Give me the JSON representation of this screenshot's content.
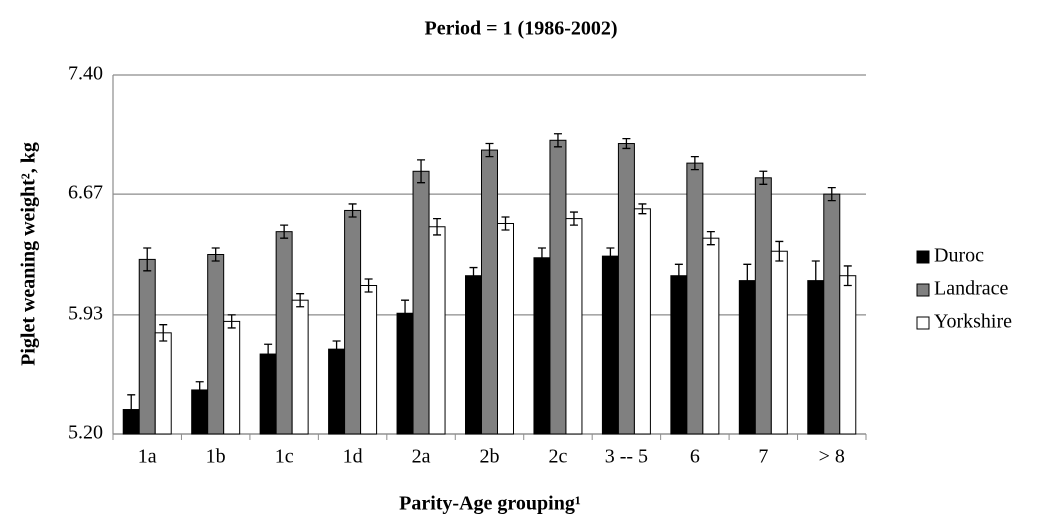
{
  "chart_data": {
    "type": "bar",
    "title": "Period = 1 (1986-2002)",
    "x_label": "Parity-Age grouping¹",
    "y_label": "Piglet weaning weight², kg",
    "categories": [
      "1a",
      "1b",
      "1c",
      "1d",
      "2a",
      "2b",
      "2c",
      "3 -- 5",
      "6",
      "7",
      "> 8"
    ],
    "series": [
      {
        "name": "Duroc",
        "color": "#000000",
        "values": [
          5.35,
          5.47,
          5.69,
          5.72,
          5.94,
          6.17,
          6.28,
          6.29,
          6.17,
          6.14,
          6.14
        ],
        "errors": [
          0.09,
          0.05,
          0.06,
          0.05,
          0.08,
          0.05,
          0.06,
          0.05,
          0.07,
          0.1,
          0.12
        ]
      },
      {
        "name": "Landrace",
        "color": "#808080",
        "values": [
          6.27,
          6.3,
          6.44,
          6.57,
          6.81,
          6.94,
          7.0,
          6.98,
          6.86,
          6.77,
          6.67
        ],
        "errors": [
          0.07,
          0.04,
          0.04,
          0.04,
          0.07,
          0.04,
          0.04,
          0.03,
          0.04,
          0.04,
          0.04
        ]
      },
      {
        "name": "Yorkshire",
        "color": "#ffffff",
        "values": [
          5.82,
          5.89,
          6.02,
          6.11,
          6.47,
          6.49,
          6.52,
          6.58,
          6.4,
          6.32,
          6.17
        ],
        "errors": [
          0.05,
          0.04,
          0.04,
          0.04,
          0.05,
          0.04,
          0.04,
          0.03,
          0.04,
          0.06,
          0.06
        ]
      }
    ],
    "ylim": [
      5.2,
      7.4
    ],
    "yticks": [
      {
        "value": 5.2,
        "label": "5.20"
      },
      5.93,
      6.67,
      {
        "value": 7.4,
        "label": "7.40"
      }
    ],
    "grid": true,
    "legend": "right"
  }
}
